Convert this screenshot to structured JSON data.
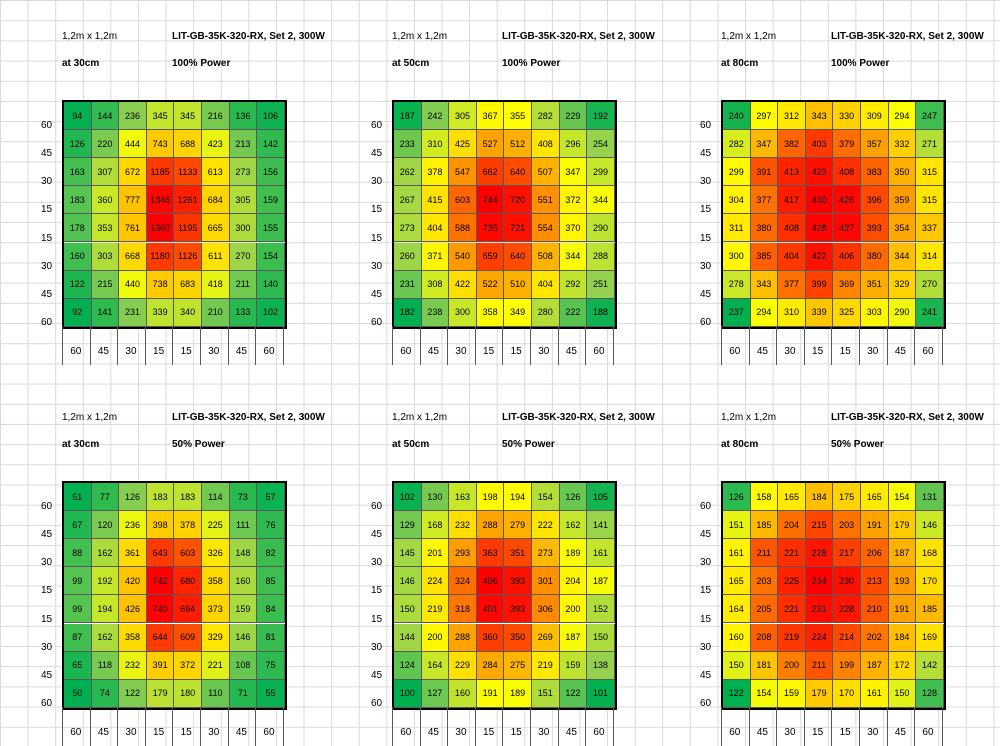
{
  "chart_data": [
    {
      "type": "heatmap",
      "size_label": "1,2m x 1,2m",
      "title": "LIT-GB-35K-320-RX, Set 2, 300W",
      "distance": "at 30cm",
      "power": "100% Power",
      "x_labels": [
        "60",
        "45",
        "30",
        "15",
        "15",
        "30",
        "45",
        "60"
      ],
      "y_labels": [
        "60",
        "45",
        "30",
        "15",
        "15",
        "30",
        "45",
        "60"
      ],
      "values": [
        [
          94,
          144,
          236,
          345,
          345,
          216,
          136,
          106
        ],
        [
          126,
          220,
          444,
          743,
          688,
          423,
          213,
          142
        ],
        [
          163,
          307,
          672,
          1185,
          1133,
          613,
          273,
          156
        ],
        [
          183,
          360,
          777,
          1346,
          1261,
          684,
          305,
          159
        ],
        [
          178,
          353,
          761,
          1360,
          1195,
          665,
          300,
          155
        ],
        [
          160,
          303,
          668,
          1180,
          1126,
          611,
          270,
          154
        ],
        [
          122,
          215,
          440,
          738,
          683,
          418,
          211,
          140
        ],
        [
          92,
          141,
          231,
          339,
          340,
          210,
          133,
          102
        ]
      ]
    },
    {
      "type": "heatmap",
      "size_label": "1,2m x 1,2m",
      "title": "LIT-GB-35K-320-RX, Set 2, 300W",
      "distance": "at 50cm",
      "power": "100% Power",
      "x_labels": [
        "60",
        "45",
        "30",
        "15",
        "15",
        "30",
        "45",
        "60"
      ],
      "y_labels": [
        "60",
        "45",
        "30",
        "15",
        "15",
        "30",
        "45",
        "60"
      ],
      "values": [
        [
          187,
          242,
          305,
          367,
          355,
          282,
          229,
          192
        ],
        [
          233,
          310,
          425,
          527,
          512,
          408,
          296,
          254
        ],
        [
          262,
          378,
          547,
          662,
          640,
          507,
          347,
          299
        ],
        [
          267,
          415,
          603,
          744,
          720,
          551,
          372,
          344
        ],
        [
          273,
          404,
          588,
          735,
          721,
          554,
          370,
          290
        ],
        [
          260,
          371,
          540,
          659,
          640,
          508,
          344,
          288
        ],
        [
          231,
          308,
          422,
          522,
          510,
          404,
          292,
          251
        ],
        [
          182,
          238,
          300,
          358,
          349,
          280,
          222,
          188
        ]
      ]
    },
    {
      "type": "heatmap",
      "size_label": "1,2m x 1,2m",
      "title": "LIT-GB-35K-320-RX, Set 2, 300W",
      "distance": "at 80cm",
      "power": "100% Power",
      "x_labels": [
        "60",
        "45",
        "30",
        "15",
        "15",
        "30",
        "45",
        "60"
      ],
      "y_labels": [
        "60",
        "45",
        "30",
        "15",
        "15",
        "30",
        "45",
        "60"
      ],
      "values": [
        [
          240,
          297,
          312,
          343,
          330,
          309,
          294,
          247
        ],
        [
          282,
          347,
          382,
          403,
          379,
          357,
          332,
          271
        ],
        [
          299,
          391,
          413,
          423,
          408,
          383,
          350,
          315
        ],
        [
          304,
          377,
          417,
          430,
          426,
          396,
          359,
          315
        ],
        [
          311,
          380,
          408,
          428,
          427,
          393,
          354,
          337
        ],
        [
          300,
          385,
          404,
          422,
          406,
          380,
          344,
          314
        ],
        [
          278,
          343,
          377,
          399,
          369,
          351,
          329,
          270
        ],
        [
          237,
          294,
          310,
          339,
          325,
          303,
          290,
          241
        ]
      ]
    },
    {
      "type": "heatmap",
      "size_label": "1,2m x 1,2m",
      "title": "LIT-GB-35K-320-RX, Set 2, 300W",
      "distance": "at 30cm",
      "power": "50% Power",
      "x_labels": [
        "60",
        "45",
        "30",
        "15",
        "15",
        "30",
        "45",
        "60"
      ],
      "y_labels": [
        "60",
        "45",
        "30",
        "15",
        "15",
        "30",
        "45",
        "60"
      ],
      "values": [
        [
          51,
          77,
          126,
          183,
          183,
          114,
          73,
          57
        ],
        [
          67,
          120,
          236,
          398,
          378,
          225,
          111,
          76
        ],
        [
          88,
          162,
          361,
          643,
          603,
          326,
          148,
          82
        ],
        [
          99,
          192,
          420,
          742,
          680,
          358,
          160,
          85
        ],
        [
          99,
          194,
          426,
          740,
          694,
          373,
          159,
          84
        ],
        [
          87,
          162,
          358,
          644,
          609,
          329,
          146,
          81
        ],
        [
          65,
          118,
          232,
          391,
          372,
          221,
          108,
          75
        ],
        [
          50,
          74,
          122,
          179,
          180,
          110,
          71,
          55
        ]
      ]
    },
    {
      "type": "heatmap",
      "size_label": "1,2m x 1,2m",
      "title": "LIT-GB-35K-320-RX, Set 2, 300W",
      "distance": "at 50cm",
      "power": "50% Power",
      "x_labels": [
        "60",
        "45",
        "30",
        "15",
        "15",
        "30",
        "45",
        "60"
      ],
      "y_labels": [
        "60",
        "45",
        "30",
        "15",
        "15",
        "30",
        "45",
        "60"
      ],
      "values": [
        [
          102,
          130,
          163,
          198,
          194,
          154,
          126,
          105
        ],
        [
          129,
          168,
          232,
          288,
          279,
          222,
          162,
          141
        ],
        [
          145,
          201,
          293,
          363,
          351,
          273,
          189,
          161
        ],
        [
          146,
          224,
          324,
          406,
          393,
          301,
          204,
          187
        ],
        [
          150,
          219,
          318,
          401,
          393,
          306,
          200,
          152
        ],
        [
          144,
          200,
          288,
          360,
          350,
          269,
          187,
          150
        ],
        [
          124,
          164,
          229,
          284,
          275,
          219,
          159,
          138
        ],
        [
          100,
          127,
          160,
          191,
          189,
          151,
          122,
          101
        ]
      ]
    },
    {
      "type": "heatmap",
      "size_label": "1,2m x 1,2m",
      "title": "LIT-GB-35K-320-RX, Set 2, 300W",
      "distance": "at 80cm",
      "power": "50% Power",
      "x_labels": [
        "60",
        "45",
        "30",
        "15",
        "15",
        "30",
        "45",
        "60"
      ],
      "y_labels": [
        "60",
        "45",
        "30",
        "15",
        "15",
        "30",
        "45",
        "60"
      ],
      "values": [
        [
          126,
          158,
          165,
          184,
          175,
          165,
          154,
          131
        ],
        [
          151,
          185,
          204,
          215,
          203,
          191,
          179,
          146
        ],
        [
          161,
          211,
          221,
          228,
          217,
          206,
          187,
          168
        ],
        [
          165,
          203,
          225,
          234,
          230,
          213,
          193,
          170
        ],
        [
          164,
          205,
          221,
          231,
          228,
          210,
          191,
          185
        ],
        [
          160,
          208,
          219,
          224,
          214,
          202,
          184,
          169
        ],
        [
          150,
          181,
          200,
          211,
          199,
          187,
          172,
          142
        ],
        [
          122,
          154,
          159,
          179,
          170,
          161,
          150,
          128
        ]
      ]
    }
  ]
}
